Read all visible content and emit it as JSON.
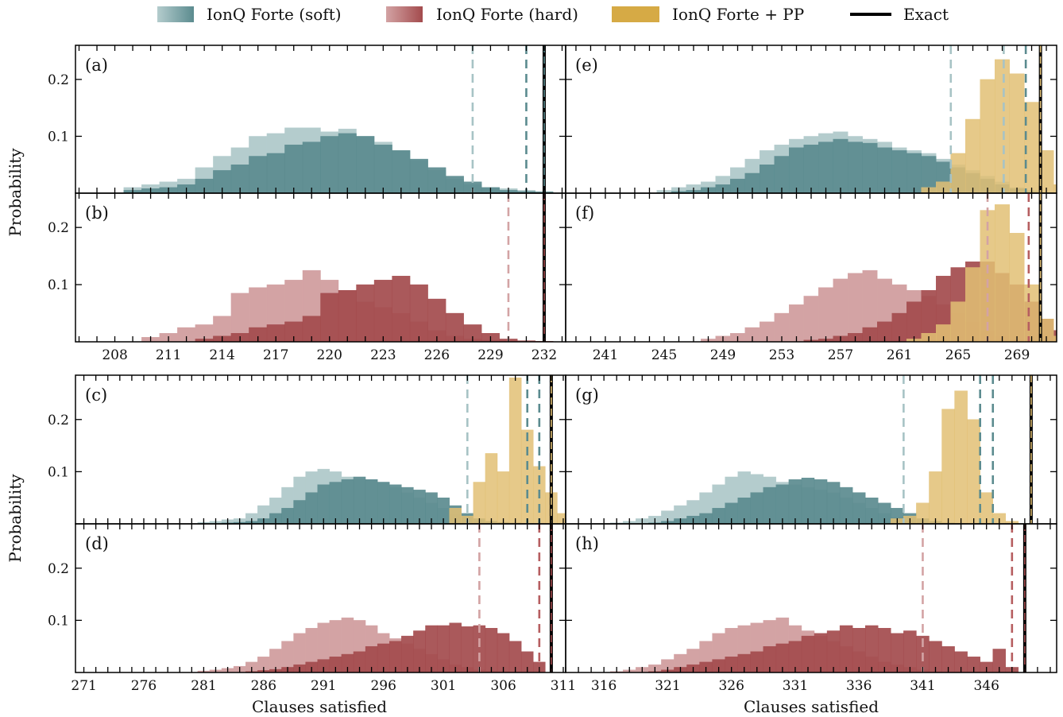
{
  "legend": {
    "soft": "IonQ Forte (soft)",
    "hard": "IonQ Forte (hard)",
    "pp": "IonQ Forte + PP",
    "exact": "Exact"
  },
  "colors": {
    "soft_light": "#b4cccd",
    "soft_dark": "#5b8b8f",
    "hard_light": "#d3a3a4",
    "hard_dark": "#a34b4d",
    "pp": "#e2c074",
    "exact": "#000000"
  },
  "axis_text": {
    "ylabel": "Probability",
    "xlabel": "Clauses satisfied"
  },
  "chart_data": [
    {
      "panel": "(a)",
      "type": "bar",
      "xlim": [
        205.8,
        233.2
      ],
      "ylim": [
        0,
        0.26
      ],
      "yticks": [
        0.1,
        0.2
      ],
      "tick_labels": [],
      "bins_start": 206,
      "series": [
        {
          "name": "IonQ Forte (soft)",
          "shade": "light",
          "values": [
            0,
            0,
            0,
            0.01,
            0.015,
            0.02,
            0.025,
            0.045,
            0.065,
            0.08,
            0.1,
            0.105,
            0.115,
            0.115,
            0.108,
            0.113,
            0.1,
            0.09,
            0.075,
            0.058,
            0.04,
            0.025,
            0.015,
            0.01,
            0.008,
            0.005,
            0.003
          ]
        },
        {
          "name": "IonQ Forte (soft)",
          "shade": "dark",
          "values": [
            0,
            0,
            0,
            0.005,
            0.008,
            0.01,
            0.015,
            0.025,
            0.04,
            0.05,
            0.065,
            0.07,
            0.085,
            0.09,
            0.1,
            0.105,
            0.1,
            0.085,
            0.075,
            0.06,
            0.045,
            0.03,
            0.02,
            0.01,
            0.005,
            0.003,
            0.002
          ]
        }
      ],
      "vlines": [
        {
          "x": 228,
          "style": "light"
        },
        {
          "x": 231,
          "style": "dark"
        },
        {
          "x": 232,
          "style": "exact"
        }
      ]
    },
    {
      "panel": "(b)",
      "type": "bar",
      "xlim": [
        205.8,
        233.2
      ],
      "ylim": [
        0,
        0.26
      ],
      "yticks": [
        0.1,
        0.2
      ],
      "tick_labels": [
        "208",
        "211",
        "214",
        "217",
        "220",
        "223",
        "226",
        "229",
        "232"
      ],
      "bins_start": 206,
      "series": [
        {
          "name": "IonQ Forte (hard)",
          "shade": "light",
          "values": [
            0,
            0,
            0,
            0,
            0.008,
            0.015,
            0.025,
            0.03,
            0.045,
            0.085,
            0.095,
            0.1,
            0.108,
            0.125,
            0.108,
            0.09,
            0.07,
            0.06,
            0.05,
            0.035,
            0.02,
            0.01,
            0.005,
            0.003,
            0.002,
            0,
            0
          ]
        },
        {
          "name": "IonQ Forte (hard)",
          "shade": "dark",
          "values": [
            0,
            0,
            0,
            0,
            0,
            0,
            0,
            0.005,
            0.01,
            0.015,
            0.025,
            0.03,
            0.035,
            0.045,
            0.085,
            0.09,
            0.1,
            0.108,
            0.115,
            0.1,
            0.075,
            0.05,
            0.03,
            0.015,
            0.005,
            0.002,
            0.001
          ]
        }
      ],
      "vlines": [
        {
          "x": 230,
          "style": "light"
        },
        {
          "x": 232,
          "style": "dark"
        },
        {
          "x": 232,
          "style": "exact"
        }
      ]
    },
    {
      "panel": "(c)",
      "type": "bar",
      "xlim": [
        270.3,
        311.2
      ],
      "ylim": [
        0,
        0.285
      ],
      "yticks": [
        0.1,
        0.2
      ],
      "tick_labels": [],
      "bins_start": 270,
      "series": [
        {
          "name": "IonQ Forte (soft)",
          "shade": "light",
          "values": [
            0,
            0,
            0,
            0,
            0,
            0,
            0,
            0,
            0,
            0,
            0,
            0.003,
            0.005,
            0.008,
            0.01,
            0.02,
            0.035,
            0.05,
            0.07,
            0.09,
            0.1,
            0.105,
            0.1,
            0.09,
            0.085,
            0.085,
            0.08,
            0.07,
            0.06,
            0.05,
            0.04,
            0.03,
            0.02,
            0.01,
            0.005,
            0.003,
            0.002,
            0.001,
            0.001,
            0
          ]
        },
        {
          "name": "IonQ Forte (soft)",
          "shade": "dark",
          "values": [
            0,
            0,
            0,
            0,
            0,
            0,
            0,
            0,
            0,
            0,
            0,
            0,
            0,
            0.002,
            0.003,
            0.005,
            0.01,
            0.02,
            0.03,
            0.045,
            0.06,
            0.075,
            0.08,
            0.085,
            0.09,
            0.085,
            0.08,
            0.075,
            0.07,
            0.065,
            0.06,
            0.05,
            0.035,
            0.02,
            0.01,
            0.005,
            0.003,
            0.002,
            0.001,
            0
          ]
        },
        {
          "name": "IonQ Forte + PP",
          "shade": "pp",
          "values": [
            0,
            0,
            0,
            0,
            0,
            0,
            0,
            0,
            0,
            0,
            0,
            0,
            0,
            0,
            0,
            0,
            0,
            0,
            0,
            0,
            0,
            0,
            0,
            0,
            0,
            0,
            0,
            0,
            0,
            0,
            0,
            0,
            0.03,
            0.015,
            0.08,
            0.135,
            0.1,
            0.28,
            0.18,
            0.11,
            0.06,
            0.02
          ]
        }
      ],
      "vlines": [
        {
          "x": 303,
          "style": "light"
        },
        {
          "x": 308,
          "style": "dark"
        },
        {
          "x": 309,
          "style": "dark"
        },
        {
          "x": 310,
          "style": "exact"
        }
      ]
    },
    {
      "panel": "(d)",
      "type": "bar",
      "xlim": [
        270.3,
        311.2
      ],
      "ylim": [
        0,
        0.285
      ],
      "yticks": [
        0.1,
        0.2
      ],
      "tick_labels": [
        "271",
        "276",
        "281",
        "286",
        "291",
        "296",
        "301",
        "306",
        "311"
      ],
      "bins_start": 270,
      "series": [
        {
          "name": "IonQ Forte (hard)",
          "shade": "light",
          "values": [
            0,
            0,
            0,
            0,
            0,
            0,
            0,
            0,
            0,
            0,
            0,
            0.003,
            0.005,
            0.008,
            0.012,
            0.02,
            0.03,
            0.045,
            0.06,
            0.075,
            0.085,
            0.095,
            0.1,
            0.105,
            0.1,
            0.09,
            0.075,
            0.065,
            0.055,
            0.045,
            0.035,
            0.025,
            0.015,
            0.01,
            0.005,
            0.003,
            0.002,
            0.001,
            0.001,
            0
          ]
        },
        {
          "name": "IonQ Forte (hard)",
          "shade": "dark",
          "values": [
            0,
            0,
            0,
            0,
            0,
            0,
            0,
            0,
            0,
            0,
            0,
            0,
            0,
            0,
            0,
            0.002,
            0.004,
            0.006,
            0.01,
            0.015,
            0.02,
            0.025,
            0.03,
            0.035,
            0.04,
            0.05,
            0.055,
            0.06,
            0.07,
            0.08,
            0.09,
            0.09,
            0.095,
            0.088,
            0.09,
            0.085,
            0.075,
            0.06,
            0.04,
            0.02
          ]
        }
      ],
      "vlines": [
        {
          "x": 304,
          "style": "light"
        },
        {
          "x": 309,
          "style": "dark"
        },
        {
          "x": 310,
          "style": "exact"
        }
      ]
    },
    {
      "panel": "(e)",
      "type": "bar",
      "xlim": [
        238.3,
        271.7
      ],
      "ylim": [
        0,
        0.26
      ],
      "yticks": [
        0.1,
        0.2
      ],
      "tick_labels": [],
      "bins_start": 239,
      "series": [
        {
          "name": "IonQ Forte (soft)",
          "shade": "light",
          "values": [
            0,
            0,
            0,
            0,
            0,
            0,
            0.005,
            0.01,
            0.015,
            0.02,
            0.03,
            0.045,
            0.06,
            0.075,
            0.085,
            0.095,
            0.1,
            0.105,
            0.108,
            0.1,
            0.095,
            0.09,
            0.08,
            0.075,
            0.07,
            0.06,
            0.05,
            0.04,
            0.03,
            0.02,
            0.01,
            0.005,
            0.002
          ]
        },
        {
          "name": "IonQ Forte (soft)",
          "shade": "dark",
          "values": [
            0,
            0,
            0,
            0,
            0,
            0,
            0,
            0.003,
            0.005,
            0.01,
            0.015,
            0.025,
            0.035,
            0.05,
            0.065,
            0.08,
            0.085,
            0.09,
            0.095,
            0.09,
            0.088,
            0.08,
            0.075,
            0.07,
            0.065,
            0.055,
            0.045,
            0.035,
            0.025,
            0.015,
            0.008,
            0.003,
            0.001
          ]
        },
        {
          "name": "IonQ Forte + PP",
          "shade": "pp",
          "values": [
            0,
            0,
            0,
            0,
            0,
            0,
            0,
            0,
            0,
            0,
            0,
            0,
            0,
            0,
            0,
            0,
            0,
            0,
            0,
            0,
            0,
            0,
            0,
            0,
            0.01,
            0.02,
            0.07,
            0.13,
            0.2,
            0.235,
            0.21,
            0.16,
            0.075,
            0.015
          ]
        }
      ],
      "vlines": [
        {
          "x": 264.5,
          "style": "light"
        },
        {
          "x": 268.1,
          "style": "light"
        },
        {
          "x": 269.6,
          "style": "dark"
        },
        {
          "x": 270.6,
          "style": "exact"
        }
      ]
    },
    {
      "panel": "(f)",
      "type": "bar",
      "xlim": [
        238.3,
        271.7
      ],
      "ylim": [
        0,
        0.26
      ],
      "yticks": [
        0.1,
        0.2
      ],
      "tick_labels": [
        "241",
        "245",
        "249",
        "253",
        "257",
        "261",
        "265",
        "269"
      ],
      "bins_start": 239,
      "series": [
        {
          "name": "IonQ Forte (hard)",
          "shade": "light",
          "values": [
            0,
            0,
            0,
            0,
            0,
            0,
            0,
            0,
            0,
            0.005,
            0.01,
            0.015,
            0.025,
            0.035,
            0.05,
            0.065,
            0.08,
            0.095,
            0.11,
            0.12,
            0.125,
            0.11,
            0.1,
            0.09,
            0.08,
            0.065,
            0.05,
            0.035,
            0.02,
            0.01,
            0.005,
            0.002,
            0
          ]
        },
        {
          "name": "IonQ Forte (hard)",
          "shade": "dark",
          "values": [
            0,
            0,
            0,
            0,
            0,
            0,
            0,
            0,
            0,
            0,
            0,
            0,
            0,
            0,
            0,
            0,
            0.003,
            0.005,
            0.01,
            0.015,
            0.025,
            0.035,
            0.05,
            0.07,
            0.09,
            0.115,
            0.13,
            0.14,
            0.14,
            0.12,
            0.1,
            0.07,
            0.04,
            0.02
          ]
        },
        {
          "name": "IonQ Forte + PP",
          "shade": "pp",
          "values": [
            0,
            0,
            0,
            0,
            0,
            0,
            0,
            0,
            0,
            0,
            0,
            0,
            0,
            0,
            0,
            0,
            0,
            0,
            0,
            0,
            0,
            0,
            0,
            0.005,
            0.015,
            0.03,
            0.07,
            0.13,
            0.23,
            0.24,
            0.19,
            0.1,
            0.04,
            0.01
          ]
        }
      ],
      "vlines": [
        {
          "x": 267,
          "style": "light"
        },
        {
          "x": 269.8,
          "style": "dark"
        },
        {
          "x": 270.6,
          "style": "exact"
        }
      ]
    },
    {
      "panel": "(g)",
      "type": "bar",
      "xlim": [
        313,
        351.5
      ],
      "ylim": [
        0,
        0.285
      ],
      "yticks": [
        0.1,
        0.2
      ],
      "tick_labels": [],
      "bins_start": 314,
      "series": [
        {
          "name": "IonQ Forte (soft)",
          "shade": "light",
          "values": [
            0,
            0,
            0,
            0.002,
            0.005,
            0.01,
            0.015,
            0.025,
            0.035,
            0.045,
            0.06,
            0.075,
            0.09,
            0.1,
            0.095,
            0.09,
            0.08,
            0.075,
            0.07,
            0.065,
            0.06,
            0.05,
            0.04,
            0.03,
            0.02,
            0.012,
            0.007,
            0.004,
            0.002,
            0.001,
            0,
            0,
            0,
            0,
            0,
            0
          ]
        },
        {
          "name": "IonQ Forte (soft)",
          "shade": "dark",
          "values": [
            0,
            0,
            0,
            0,
            0,
            0,
            0.002,
            0.005,
            0.01,
            0.015,
            0.02,
            0.03,
            0.04,
            0.05,
            0.06,
            0.07,
            0.075,
            0.085,
            0.088,
            0.085,
            0.08,
            0.07,
            0.06,
            0.05,
            0.04,
            0.03,
            0.02,
            0.01,
            0.005,
            0.002,
            0.001,
            0,
            0,
            0,
            0,
            0
          ]
        },
        {
          "name": "IonQ Forte + PP",
          "shade": "pp",
          "values": [
            0,
            0,
            0,
            0,
            0,
            0,
            0,
            0,
            0,
            0,
            0,
            0,
            0,
            0,
            0,
            0,
            0,
            0,
            0,
            0,
            0,
            0,
            0,
            0,
            0,
            0.01,
            0.015,
            0.04,
            0.1,
            0.22,
            0.255,
            0.2,
            0.06,
            0.02,
            0.005,
            0
          ]
        }
      ],
      "vlines": [
        {
          "x": 339.5,
          "style": "light"
        },
        {
          "x": 345.5,
          "style": "dark"
        },
        {
          "x": 346.5,
          "style": "dark"
        },
        {
          "x": 349.5,
          "style": "exact"
        }
      ]
    },
    {
      "panel": "(h)",
      "type": "bar",
      "xlim": [
        313,
        351.5
      ],
      "ylim": [
        0,
        0.285
      ],
      "yticks": [
        0.1,
        0.2
      ],
      "tick_labels": [
        "316",
        "321",
        "326",
        "331",
        "336",
        "341",
        "346"
      ],
      "bins_start": 314,
      "series": [
        {
          "name": "IonQ Forte (hard)",
          "shade": "light",
          "values": [
            0,
            0,
            0,
            0.002,
            0.005,
            0.01,
            0.015,
            0.025,
            0.035,
            0.045,
            0.06,
            0.075,
            0.085,
            0.09,
            0.095,
            0.1,
            0.105,
            0.09,
            0.08,
            0.07,
            0.06,
            0.05,
            0.04,
            0.03,
            0.02,
            0.015,
            0.01,
            0.005,
            0.002,
            0.001,
            0,
            0,
            0,
            0,
            0,
            0
          ]
        },
        {
          "name": "IonQ Forte (hard)",
          "shade": "dark",
          "values": [
            0,
            0,
            0,
            0,
            0,
            0,
            0.002,
            0.005,
            0.01,
            0.015,
            0.02,
            0.025,
            0.03,
            0.035,
            0.04,
            0.05,
            0.055,
            0.06,
            0.07,
            0.075,
            0.08,
            0.09,
            0.085,
            0.09,
            0.085,
            0.075,
            0.08,
            0.07,
            0.06,
            0.05,
            0.04,
            0.03,
            0.02,
            0.045,
            0.01,
            0
          ]
        }
      ],
      "vlines": [
        {
          "x": 341,
          "style": "light"
        },
        {
          "x": 348,
          "style": "dark"
        },
        {
          "x": 349,
          "style": "exact"
        }
      ]
    }
  ]
}
